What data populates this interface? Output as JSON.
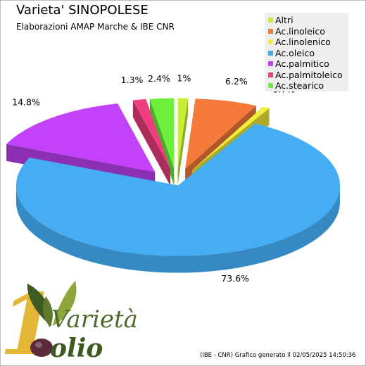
{
  "header": {
    "title": "Varieta' SINOPOLESE",
    "subtitle": "Elaborazioni AMAP Marche & IBE CNR"
  },
  "chart_data": {
    "type": "pie",
    "title": "Varieta' SINOPOLESE",
    "subtitle": "Elaborazioni AMAP Marche & IBE CNR",
    "three_d": true,
    "exploded": true,
    "legend_position": "top-right",
    "slices": [
      {
        "label": "Altri",
        "value": 1.0,
        "value_label": "1%",
        "color": "#c6ee33"
      },
      {
        "label": "Ac.linoleico",
        "value": 6.2,
        "value_label": "6.2%",
        "color": "#f47a3a"
      },
      {
        "label": "Ac.linolenico",
        "value": 0.7,
        "value_label": "0.7%",
        "color": "#f2ee3a"
      },
      {
        "label": "Ac.oleico",
        "value": 73.6,
        "value_label": "73.6%",
        "color": "#44adf4"
      },
      {
        "label": "Ac.palmitico",
        "value": 14.8,
        "value_label": "14.8%",
        "color": "#c242f9"
      },
      {
        "label": "Ac.palmitoleico",
        "value": 1.3,
        "value_label": "1.3%",
        "color": "#ef3d80"
      },
      {
        "label": "Ac.stearico",
        "value": 2.4,
        "value_label": "2.4%",
        "color": "#6def3b"
      }
    ]
  },
  "logo": {
    "word_top": "Varietà",
    "word_bottom": "olio",
    "colors": {
      "leaf_dark": "#3f5a24",
      "leaf_light": "#8ea63a",
      "text_top": "#4d6a2c",
      "text_bottom": "#3d5a1e",
      "olive": "#5c2a3c",
      "one": "#e2b32c"
    }
  },
  "footer": {
    "text": "(IBE - CNR) Grafico generato il 02/05/2025 14:50:36"
  }
}
